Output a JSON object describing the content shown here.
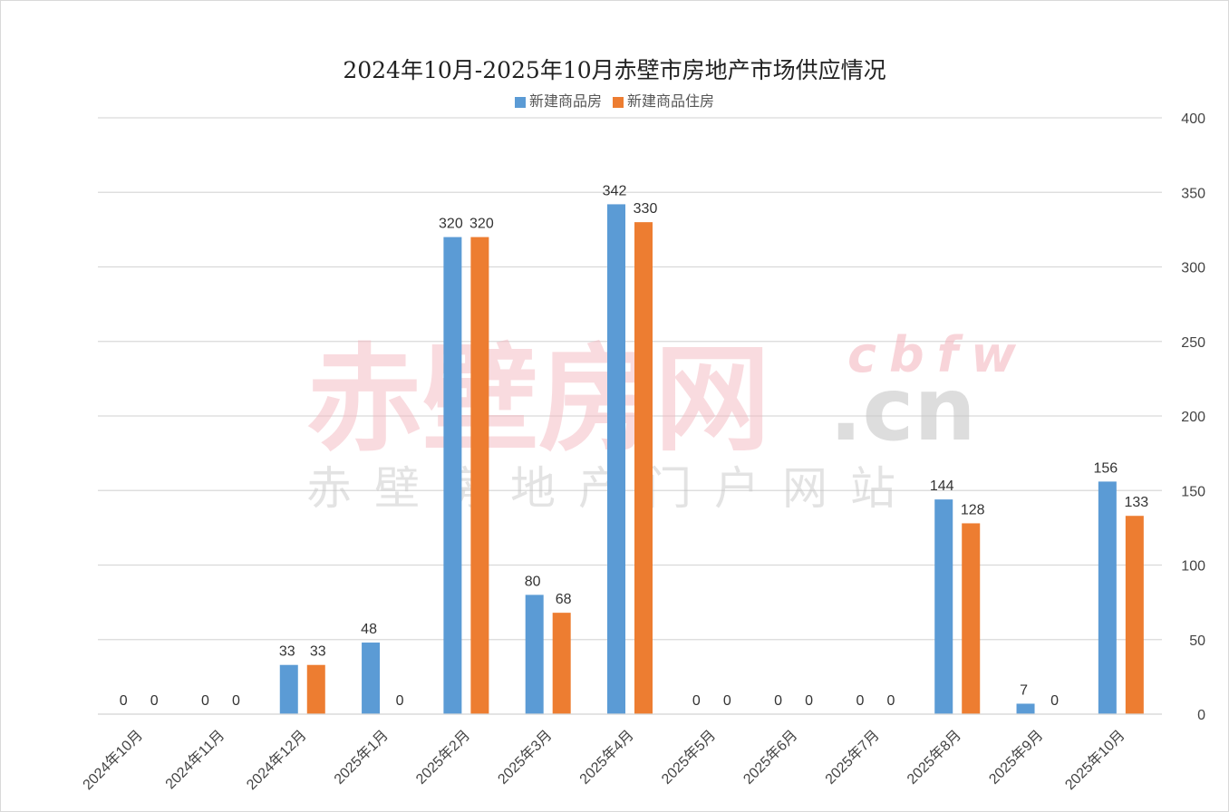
{
  "chart_data": {
    "type": "bar",
    "title": "2024年10月-2025年10月赤壁市房地产市场供应情况",
    "categories": [
      "2024年10月",
      "2024年11月",
      "2024年12月",
      "2025年1月",
      "2025年2月",
      "2025年3月",
      "2025年4月",
      "2025年5月",
      "2025年6月",
      "2025年7月",
      "2025年8月",
      "2025年9月",
      "2025年10月"
    ],
    "series": [
      {
        "name": "新建商品房",
        "color": "#5b9bd5",
        "values": [
          0,
          0,
          33,
          48,
          320,
          80,
          342,
          0,
          0,
          0,
          144,
          7,
          156
        ]
      },
      {
        "name": "新建商品住房",
        "color": "#ed7d31",
        "values": [
          0,
          0,
          33,
          0,
          320,
          68,
          330,
          0,
          0,
          0,
          128,
          0,
          133
        ]
      }
    ],
    "ylim": [
      0,
      400
    ],
    "yticks": [
      0,
      50,
      100,
      150,
      200,
      250,
      300,
      350,
      400
    ],
    "y_axis_side": "right",
    "grid": true,
    "legend": "bottom"
  },
  "watermark": {
    "main": "赤壁房网",
    "latin": "cbfw",
    "domain": ".cn",
    "sub": "赤壁房地产门户网站"
  }
}
